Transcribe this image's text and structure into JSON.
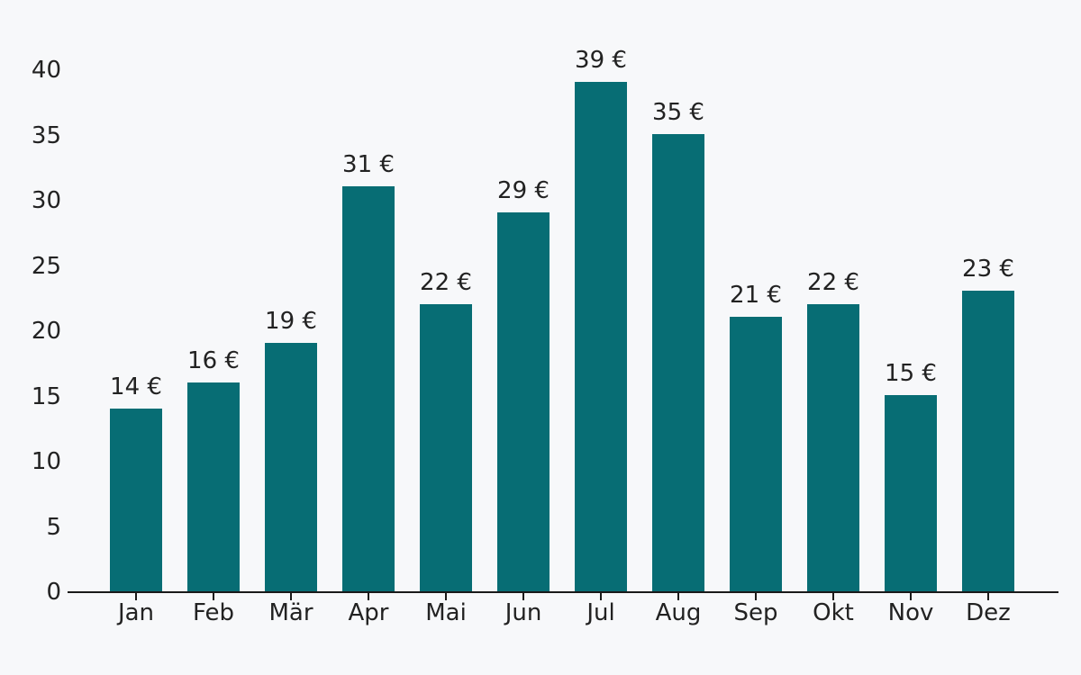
{
  "chart_data": {
    "type": "bar",
    "categories": [
      "Jan",
      "Feb",
      "Mär",
      "Apr",
      "Mai",
      "Jun",
      "Jul",
      "Aug",
      "Sep",
      "Okt",
      "Nov",
      "Dez"
    ],
    "values": [
      14,
      16,
      19,
      31,
      22,
      29,
      39,
      35,
      21,
      22,
      15,
      23
    ],
    "value_labels": [
      "14 €",
      "16 €",
      "19 €",
      "31 €",
      "22 €",
      "29 €",
      "39 €",
      "35 €",
      "21 €",
      "22 €",
      "15 €",
      "23 €"
    ],
    "unit": "€",
    "title": "",
    "xlabel": "",
    "ylabel": "",
    "ylim": [
      0,
      40
    ],
    "yticks": [
      0,
      5,
      10,
      15,
      20,
      25,
      30,
      35,
      40
    ],
    "grid": false,
    "legend": "none",
    "colors": {
      "bar": "#076d74",
      "background": "#f7f8fa",
      "text": "#222222",
      "axis": "#1a1a1a"
    }
  }
}
